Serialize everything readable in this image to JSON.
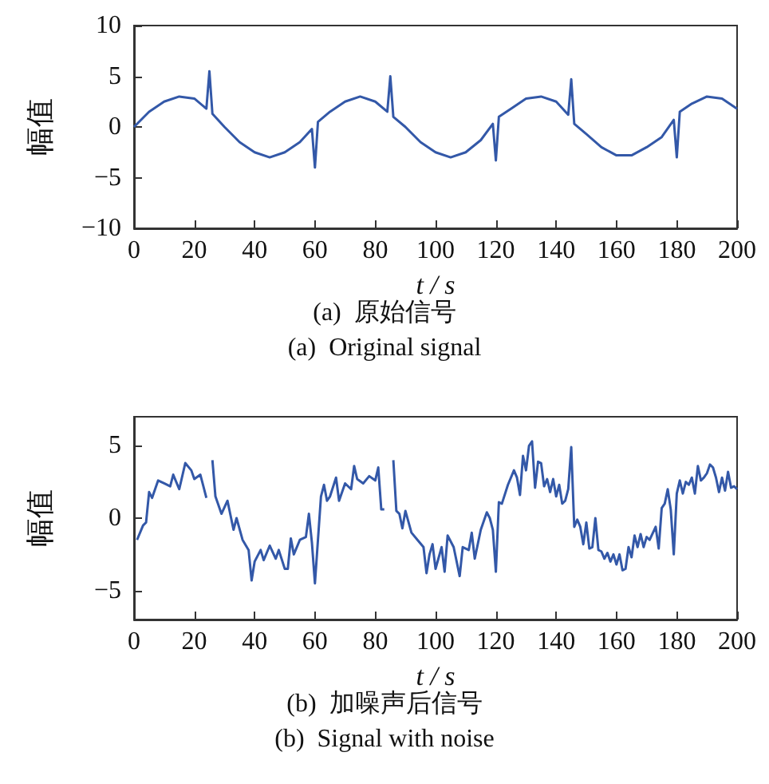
{
  "chart_data": [
    {
      "type": "line",
      "xlabel": "t / s",
      "ylabel": "幅值",
      "annotations": [
        "(a)  原始信号",
        "(a)  Original signal"
      ],
      "marker": "none",
      "xlim": [
        0,
        200
      ],
      "xticks": [
        0,
        20,
        40,
        60,
        80,
        100,
        120,
        140,
        160,
        180,
        200
      ],
      "ylim": [
        -10,
        10
      ],
      "yticks": [
        -10,
        -5,
        0,
        5,
        10
      ],
      "x": [
        0,
        5,
        10,
        15,
        20,
        24,
        25,
        26,
        30,
        35,
        40,
        45,
        50,
        55,
        59,
        60,
        61,
        65,
        70,
        75,
        80,
        84,
        85,
        86,
        90,
        95,
        100,
        105,
        110,
        115,
        119,
        120,
        121,
        125,
        130,
        135,
        140,
        144,
        145,
        146,
        150,
        155,
        160,
        165,
        170,
        175,
        179,
        180,
        181,
        185,
        190,
        195,
        200
      ],
      "series": [
        {
          "color": "#3358a8",
          "values": [
            0,
            1.5,
            2.5,
            3,
            2.8,
            1.8,
            5.5,
            1.3,
            0,
            -1.5,
            -2.5,
            -3,
            -2.5,
            -1.5,
            -0.2,
            -4,
            0.5,
            1.5,
            2.5,
            3,
            2.5,
            1.5,
            5,
            1,
            0,
            -1.5,
            -2.5,
            -3,
            -2.5,
            -1.3,
            0.3,
            -3.3,
            1,
            1.8,
            2.8,
            3,
            2.5,
            1.2,
            4.7,
            0.3,
            -0.7,
            -2,
            -2.8,
            -2.8,
            -2,
            -1,
            0.7,
            -3,
            1.5,
            2.3,
            3,
            2.8,
            1.8
          ]
        }
      ]
    },
    {
      "type": "line",
      "xlabel": "t / s",
      "ylabel": "幅值",
      "annotations": [
        "(b)  加噪声后信号",
        "(b)  Signal with noise"
      ],
      "marker": "none",
      "xlim": [
        0,
        200
      ],
      "xticks": [
        0,
        20,
        40,
        60,
        80,
        100,
        120,
        140,
        160,
        180,
        200
      ],
      "ylim": [
        -7,
        7
      ],
      "yticks": [
        -5,
        0,
        5
      ],
      "x": [
        1,
        3,
        4,
        5,
        6,
        8,
        10,
        12,
        13,
        15,
        17,
        19,
        20,
        22,
        24,
        25,
        26,
        27,
        29,
        31,
        33,
        34,
        36,
        38,
        39,
        40,
        42,
        43,
        45,
        47,
        48,
        50,
        51,
        52,
        53,
        55,
        57,
        58,
        59,
        60,
        61,
        62,
        63,
        64,
        65,
        67,
        68,
        70,
        72,
        73,
        74,
        76,
        78,
        80,
        81,
        82,
        83,
        84,
        85,
        86,
        87,
        88,
        89,
        90,
        92,
        94,
        96,
        97,
        98,
        99,
        100,
        102,
        103,
        104,
        106,
        108,
        109,
        111,
        112,
        113,
        115,
        117,
        118,
        119,
        120,
        121,
        122,
        124,
        126,
        127,
        128,
        129,
        130,
        131,
        132,
        133,
        134,
        135,
        136,
        137,
        138,
        139,
        140,
        141,
        142,
        143,
        144,
        145,
        146,
        147,
        148,
        149,
        150,
        151,
        152,
        153,
        154,
        155,
        156,
        157,
        158,
        159,
        160,
        161,
        162,
        163,
        164,
        165,
        166,
        167,
        168,
        169,
        170,
        171,
        173,
        174,
        175,
        176,
        177,
        178,
        179,
        180,
        181,
        182,
        183,
        184,
        185,
        186,
        187,
        188,
        189,
        190,
        191,
        192,
        193,
        194,
        195,
        196,
        197,
        198,
        199,
        200
      ],
      "series": [
        {
          "color": "#3358a8",
          "values": [
            -1.5,
            -0.5,
            -0.3,
            1.8,
            1.4,
            2.6,
            2.4,
            2.2,
            3,
            2,
            3.8,
            3.3,
            2.7,
            3,
            1.4,
            null,
            4,
            1.5,
            0.3,
            1.2,
            -0.8,
            0,
            -1.5,
            -2.2,
            -4.3,
            -3,
            -2.2,
            -2.9,
            -1.9,
            -2.8,
            -2.2,
            -3.5,
            -3.5,
            -1.4,
            -2.5,
            -1.5,
            -1.3,
            0.3,
            -1.7,
            -4.5,
            -1.5,
            1.5,
            2.3,
            1.2,
            1.5,
            2.8,
            1.2,
            2.4,
            2,
            3.6,
            2.7,
            2.4,
            2.9,
            2.6,
            3.5,
            0.6,
            0.6,
            null,
            null,
            4,
            0.5,
            0.3,
            -0.7,
            0.5,
            -1,
            -1.5,
            -2,
            -3.8,
            -2.5,
            -1.8,
            -3.5,
            -2,
            -3.7,
            -1.2,
            -2,
            -4,
            -2,
            -2.2,
            -1,
            -2.8,
            -0.8,
            0.4,
            0,
            -0.8,
            -3.7,
            1.1,
            1,
            2.3,
            3.3,
            2.8,
            1.6,
            4.3,
            3.3,
            5,
            5.3,
            2.1,
            3.9,
            3.8,
            2.2,
            2.7,
            1.8,
            2.7,
            1.5,
            2.3,
            1,
            1.2,
            2,
            4.9,
            -0.6,
            -0.1,
            -0.6,
            -1.8,
            -0.3,
            -2.1,
            -2,
            0,
            -2.2,
            -2.3,
            -2.8,
            -2.4,
            -3,
            -2.5,
            -3.2,
            -2.5,
            -3.6,
            -3.5,
            -2,
            -2.7,
            -1.2,
            -2,
            -1.1,
            -2,
            -1.3,
            -1.5,
            -0.6,
            -2.1,
            0.7,
            1,
            2,
            0.6,
            -2.5,
            1.7,
            2.6,
            1.7,
            2.5,
            2.3,
            2.8,
            1.7,
            3.6,
            2.6,
            2.8,
            3.1,
            3.7,
            3.5,
            2.8,
            1.8,
            2.8,
            1.9,
            3.2,
            2.1,
            2.2,
            2
          ]
        }
      ]
    }
  ]
}
